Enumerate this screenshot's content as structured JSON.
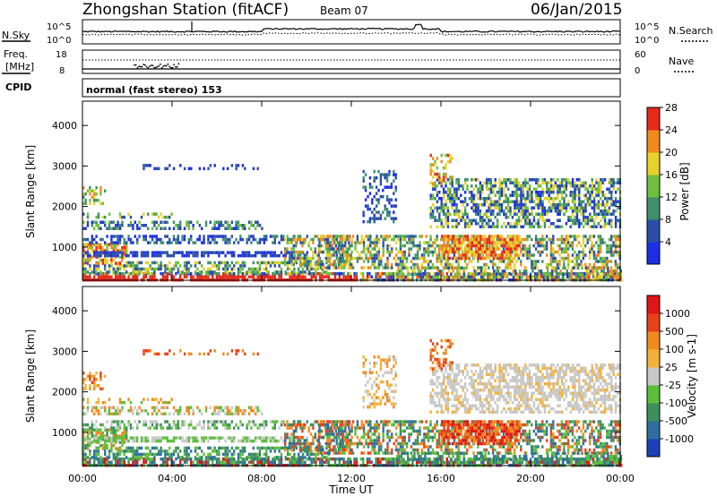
{
  "header": {
    "station": "Zhongshan Station (fitACF)",
    "beam": "Beam 07",
    "date": "06/Jan/2015"
  },
  "top_panel": {
    "left_label": "N.Sky",
    "right_label": "N.Search",
    "left_ticks": [
      "10^5",
      "10^0"
    ],
    "right_ticks": [
      "10^5",
      "10^0"
    ]
  },
  "freq_panel": {
    "left_label_line1": "Freq.",
    "left_label_line2": "[MHz]",
    "right_label": "Nave",
    "left_ticks": [
      "18",
      "8"
    ],
    "right_ticks": [
      "60",
      "0"
    ]
  },
  "cpid": {
    "label": "CPID",
    "text": "normal (fast stereo) 153"
  },
  "chart_data": [
    {
      "type": "heatmap",
      "name": "power",
      "ylabel": "Slant Range [km]",
      "yticks": [
        "1000",
        "2000",
        "3000",
        "4000"
      ],
      "ylim": [
        180,
        4600
      ],
      "colorbar_label": "Power [dB]",
      "colorbar_ticks": [
        "4",
        "8",
        "12",
        "16",
        "20",
        "24",
        "28"
      ],
      "colors": [
        "#1c2fe6",
        "#2b4fa8",
        "#3e8f6a",
        "#6fbf3e",
        "#e8d12a",
        "#f08a1d",
        "#e52a1a"
      ],
      "xlim": [
        0,
        24
      ]
    },
    {
      "type": "heatmap",
      "name": "velocity",
      "ylabel": "Slant Range [km]",
      "yticks": [
        "1000",
        "2000",
        "3000",
        "4000"
      ],
      "ylim": [
        180,
        4600
      ],
      "colorbar_label": "Velocity [m s-1]",
      "colorbar_ticks": [
        "1000",
        "500",
        "100",
        "25",
        "-25",
        "-100",
        "-500",
        "-1000"
      ],
      "colors": [
        "#1f3fb8",
        "#2e6fa0",
        "#3d8f5c",
        "#5bbf3a",
        "#c8c8c8",
        "#f2b23a",
        "#f08a1d",
        "#e8421a",
        "#e01515"
      ],
      "xlim": [
        0,
        24
      ]
    }
  ],
  "x_axis": {
    "ticks": [
      "00:00",
      "04:00",
      "08:00",
      "12:00",
      "16:00",
      "20:00",
      "00:00"
    ],
    "label": "Time UT"
  }
}
